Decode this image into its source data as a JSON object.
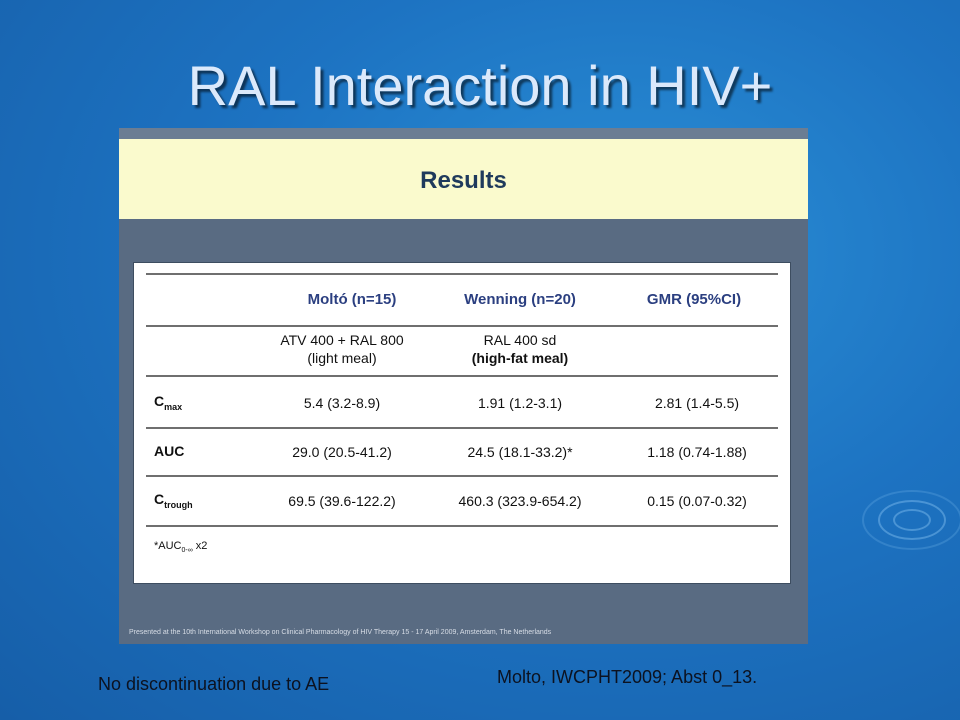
{
  "slide": {
    "title": "RAL Interaction in HIV+",
    "bottom_note": "No discontinuation due to AE",
    "reference": "Molto, IWCPHT2009; Abst 0_13."
  },
  "panel": {
    "heading": "Results",
    "source_line": "Presented at the 10th International Workshop on Clinical Pharmacology of HIV Therapy 15 - 17 April 2009, Amsterdam, The Netherlands"
  },
  "table": {
    "headers": [
      "Moltó (n=15)",
      "Wenning (n=20)",
      "GMR (95%CI)"
    ],
    "regimen": {
      "molto_line1": "ATV 400 + RAL 800",
      "molto_line2": "(light meal)",
      "wenning_line1": "RAL 400 sd",
      "wenning_line2": "(high-fat meal)"
    },
    "rows": [
      {
        "label_main": "C",
        "label_sub": "max",
        "molto": "5.4 (3.2-8.9)",
        "wenning": "1.91 (1.2-3.1)",
        "gmr": "2.81 (1.4-5.5)"
      },
      {
        "label_main": "AUC",
        "label_sub": "",
        "molto": "29.0 (20.5-41.2)",
        "wenning": "24.5 (18.1-33.2)*",
        "gmr": "1.18 (0.74-1.88)"
      },
      {
        "label_main": "C",
        "label_sub": "trough",
        "molto": "69.5 (39.6-122.2)",
        "wenning": "460.3 (323.9-654.2)",
        "gmr": "0.15 (0.07-0.32)"
      }
    ],
    "footnote": {
      "main": "*AUC",
      "sub": "0-∞",
      "tail": " x2"
    }
  }
}
